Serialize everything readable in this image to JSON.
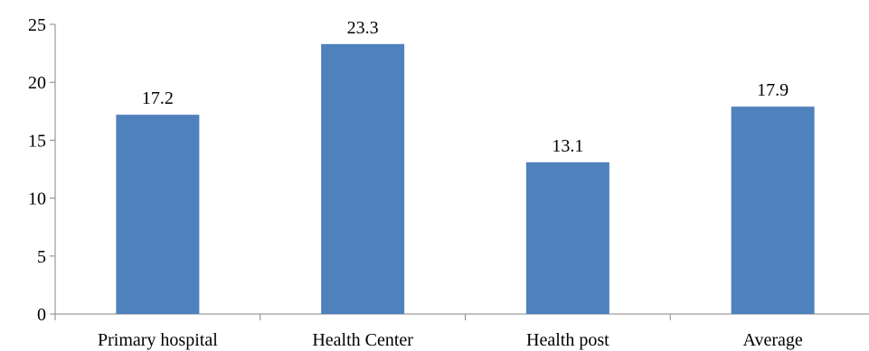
{
  "chart_data": {
    "type": "bar",
    "title": "",
    "xlabel": "",
    "ylabel": "",
    "categories": [
      "Primary hospital",
      "Health Center",
      "Health post",
      "Average"
    ],
    "values": [
      17.2,
      23.3,
      13.1,
      17.9
    ],
    "value_labels": [
      "17.2",
      "23.3",
      "13.1",
      "17.9"
    ],
    "ylim": [
      0,
      25
    ],
    "yticks": [
      0,
      5,
      10,
      15,
      20,
      25
    ],
    "ytick_labels": [
      "0",
      "5",
      "10",
      "15",
      "20",
      "25"
    ],
    "grid": false,
    "legend": "none",
    "bar_color": "#4F81BD",
    "axis_color": "#868686"
  }
}
